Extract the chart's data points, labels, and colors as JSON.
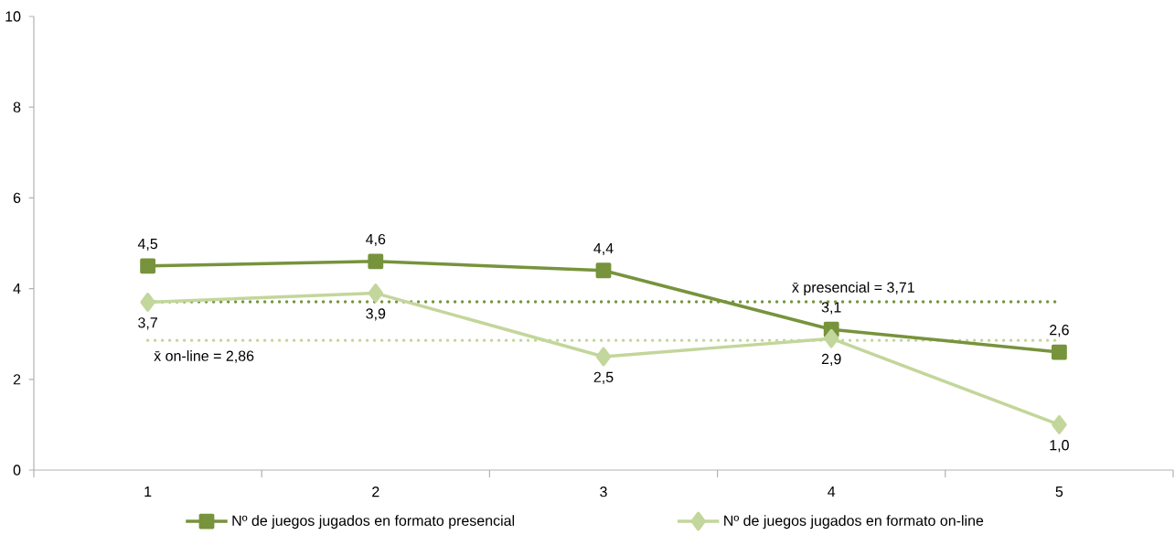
{
  "chart_data": {
    "type": "line",
    "categories": [
      "1",
      "2",
      "3",
      "4",
      "5"
    ],
    "ylim": [
      0,
      10
    ],
    "yticks": [
      0,
      2,
      4,
      6,
      8,
      10
    ],
    "legend": "bottom",
    "line_style": "solid",
    "series": [
      {
        "name": "Nº de juegos jugados en formato presencial",
        "color": "#77933c",
        "marker": "square",
        "values": [
          4.5,
          4.6,
          4.4,
          3.1,
          2.6
        ],
        "value_labels": [
          "4,5",
          "4,6",
          "4,4",
          "3,1",
          "2,6"
        ]
      },
      {
        "name": "Nº de juegos jugados en formato on-line",
        "color": "#c3d69b",
        "marker": "diamond",
        "values": [
          3.7,
          3.9,
          2.5,
          2.9,
          1.0
        ],
        "value_labels": [
          "3,7",
          "3,9",
          "2,5",
          "2,9",
          "1,0"
        ]
      }
    ],
    "ref_lines": [
      {
        "axis": "y",
        "value": 3.71,
        "label": "x̄ presencial = 3,71",
        "color": "#77933c",
        "line_style": "dotted"
      },
      {
        "axis": "y",
        "value": 2.86,
        "label": "x̄ on-line = 2,86",
        "color": "#c3d69b",
        "line_style": "dotted"
      }
    ]
  }
}
